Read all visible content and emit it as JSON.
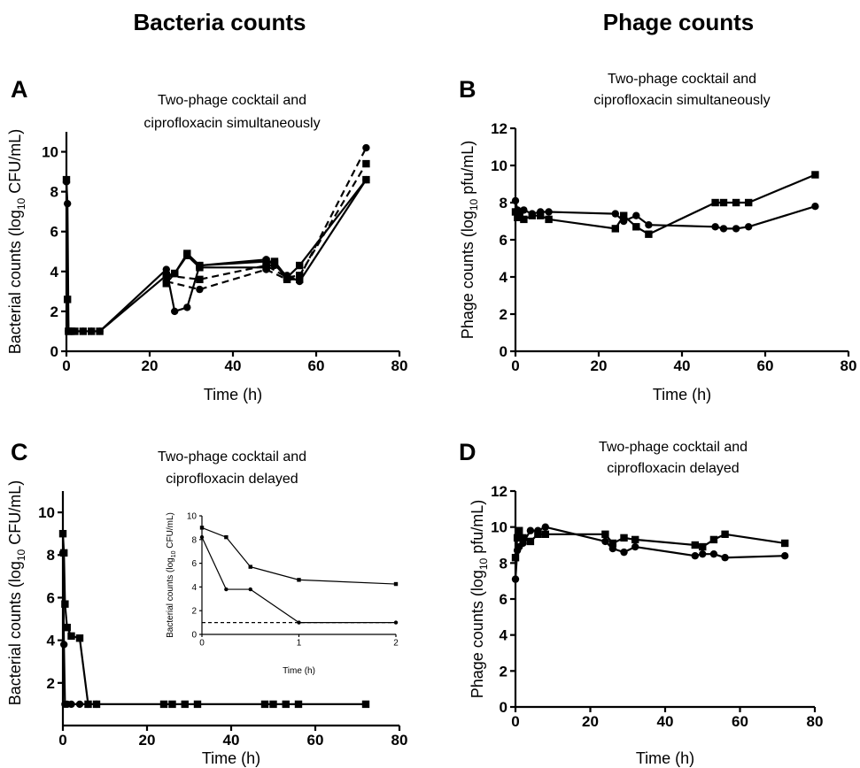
{
  "headings": {
    "left": "Bacteria counts",
    "right": "Phage counts"
  },
  "chart_data": [
    {
      "panel": "A",
      "type": "line",
      "title": [
        "Two-phage cocktail and",
        "ciprofloxacin simultaneously"
      ],
      "xlabel": "Time (h)",
      "ylabel": {
        "pre": "Bacterial counts (log",
        "sub": "10",
        "post": " CFU/mL)"
      },
      "xlim": [
        0,
        80
      ],
      "ylim": [
        0,
        11
      ],
      "xticks": [
        0,
        20,
        40,
        60,
        80
      ],
      "yticks": [
        0,
        2,
        4,
        6,
        8,
        10
      ],
      "series": [
        {
          "marker": "square",
          "dash": false,
          "points": [
            [
              0,
              8.6
            ],
            [
              0.25,
              2.6
            ],
            [
              0.5,
              1
            ],
            [
              1,
              1
            ],
            [
              2,
              1
            ],
            [
              4,
              1
            ],
            [
              6,
              1
            ],
            [
              8,
              1
            ],
            [
              24,
              3.8
            ],
            [
              26,
              3.9
            ],
            [
              29,
              4.9
            ],
            [
              32,
              4.3
            ],
            [
              48,
              4.5
            ],
            [
              50,
              4.5
            ],
            [
              53,
              3.7
            ],
            [
              56,
              4.3
            ],
            [
              72,
              8.6
            ]
          ]
        },
        {
          "marker": "circle",
          "dash": false,
          "points": [
            [
              0,
              8.5
            ],
            [
              0.25,
              7.4
            ],
            [
              0.5,
              1
            ],
            [
              1,
              1
            ],
            [
              2,
              1
            ],
            [
              4,
              1
            ],
            [
              6,
              1
            ],
            [
              8,
              1
            ],
            [
              24,
              4.1
            ],
            [
              26,
              2.0
            ],
            [
              29,
              2.2
            ],
            [
              32,
              4.3
            ],
            [
              48,
              4.6
            ],
            [
              50,
              4.3
            ],
            [
              53,
              3.8
            ],
            [
              56,
              3.5
            ],
            [
              72,
              8.6
            ]
          ]
        },
        {
          "marker": "square",
          "dash": false,
          "points": [
            [
              24,
              3.4
            ],
            [
              26,
              3.9
            ],
            [
              29,
              4.8
            ],
            [
              32,
              4.2
            ],
            [
              48,
              4.2
            ],
            [
              50,
              4.4
            ],
            [
              53,
              3.6
            ],
            [
              56,
              3.6
            ]
          ]
        },
        {
          "marker": "square",
          "dash": true,
          "points": [
            [
              24,
              3.8
            ],
            [
              32,
              3.6
            ],
            [
              48,
              4.3
            ],
            [
              53,
              3.7
            ],
            [
              56,
              3.8
            ],
            [
              72,
              9.4
            ]
          ]
        },
        {
          "marker": "circle",
          "dash": true,
          "points": [
            [
              24,
              3.5
            ],
            [
              32,
              3.1
            ],
            [
              48,
              4.1
            ],
            [
              53,
              3.6
            ],
            [
              56,
              3.7
            ],
            [
              72,
              10.2
            ]
          ]
        }
      ]
    },
    {
      "panel": "B",
      "type": "line",
      "title": [
        "Two-phage cocktail and",
        "ciprofloxacin simultaneously"
      ],
      "xlabel": "Time (h)",
      "ylabel": {
        "pre": "Phage counts (log",
        "sub": "10",
        "post": " pfu/mL)"
      },
      "xlim": [
        0,
        80
      ],
      "ylim": [
        0,
        12
      ],
      "xticks": [
        0,
        20,
        40,
        60,
        80
      ],
      "yticks": [
        0,
        2,
        4,
        6,
        8,
        10,
        12
      ],
      "series": [
        {
          "marker": "circle",
          "dash": false,
          "points": [
            [
              0,
              8.1
            ],
            [
              0.5,
              7.6
            ],
            [
              1,
              7.5
            ],
            [
              2,
              7.6
            ],
            [
              4,
              7.4
            ],
            [
              6,
              7.5
            ],
            [
              8,
              7.5
            ],
            [
              24,
              7.4
            ],
            [
              26,
              7.0
            ],
            [
              29,
              7.3
            ],
            [
              32,
              6.8
            ],
            [
              48,
              6.7
            ],
            [
              50,
              6.6
            ],
            [
              53,
              6.6
            ],
            [
              56,
              6.7
            ],
            [
              72,
              7.8
            ]
          ]
        },
        {
          "marker": "square",
          "dash": false,
          "points": [
            [
              0,
              7.5
            ],
            [
              0.5,
              7.2
            ],
            [
              1,
              7.3
            ],
            [
              2,
              7.1
            ],
            [
              4,
              7.3
            ],
            [
              6,
              7.3
            ],
            [
              8,
              7.1
            ],
            [
              24,
              6.6
            ],
            [
              26,
              7.3
            ],
            [
              29,
              6.7
            ],
            [
              32,
              6.3
            ],
            [
              48,
              8.0
            ],
            [
              50,
              8.0
            ],
            [
              53,
              8.0
            ],
            [
              56,
              8.0
            ],
            [
              72,
              9.5
            ]
          ]
        }
      ]
    },
    {
      "panel": "C",
      "type": "line",
      "title": [
        "Two-phage cocktail and",
        "ciprofloxacin delayed"
      ],
      "xlabel": "Time (h)",
      "ylabel": {
        "pre": "Bacterial counts (log",
        "sub": "10",
        "post": " CFU/mL)"
      },
      "xlim": [
        0,
        80
      ],
      "ylim": [
        0,
        11
      ],
      "xticks": [
        0,
        20,
        40,
        60,
        80
      ],
      "yticks": [
        2,
        4,
        6,
        8,
        10
      ],
      "series": [
        {
          "marker": "square",
          "dash": false,
          "points": [
            [
              0,
              9.0
            ],
            [
              0.25,
              8.1
            ],
            [
              0.5,
              5.7
            ],
            [
              1,
              4.6
            ],
            [
              2,
              4.2
            ],
            [
              4,
              4.1
            ],
            [
              6,
              1
            ],
            [
              8,
              1
            ],
            [
              24,
              1
            ],
            [
              26,
              1
            ],
            [
              29,
              1
            ],
            [
              32,
              1
            ],
            [
              48,
              1
            ],
            [
              50,
              1
            ],
            [
              53,
              1
            ],
            [
              56,
              1
            ],
            [
              72,
              1
            ]
          ]
        },
        {
          "marker": "circle",
          "dash": false,
          "points": [
            [
              0,
              8.1
            ],
            [
              0.25,
              3.8
            ],
            [
              0.5,
              1
            ],
            [
              1,
              1
            ],
            [
              2,
              1
            ],
            [
              4,
              1
            ],
            [
              6,
              1
            ],
            [
              8,
              1
            ]
          ]
        }
      ],
      "inset": {
        "xlabel": "Time (h)",
        "ylabel": {
          "pre": "Bacterial counts (log",
          "sub": "10",
          "post": " CFU/mL)"
        },
        "xlim": [
          0,
          2
        ],
        "ylim": [
          0,
          10
        ],
        "xticks": [
          0,
          1,
          2
        ],
        "yticks": [
          0,
          2,
          4,
          6,
          8,
          10
        ],
        "series": [
          {
            "marker": "square",
            "dash": false,
            "points": [
              [
                0,
                9.0
              ],
              [
                0.25,
                8.2
              ],
              [
                0.5,
                5.7
              ],
              [
                1,
                4.6
              ],
              [
                2,
                4.25
              ]
            ]
          },
          {
            "marker": "circle",
            "dash": false,
            "points": [
              [
                0,
                8.2
              ],
              [
                0.25,
                3.8
              ],
              [
                0.5,
                3.8
              ],
              [
                1,
                1
              ],
              [
                2,
                1
              ]
            ]
          },
          {
            "marker": "none",
            "dash": true,
            "points": [
              [
                0,
                1
              ],
              [
                2,
                1
              ]
            ]
          }
        ]
      }
    },
    {
      "panel": "D",
      "type": "line",
      "title": [
        "Two-phage cocktail and",
        "ciprofloxacin delayed"
      ],
      "xlabel": "Time (h)",
      "ylabel": {
        "pre": "Phage counts (log",
        "sub": "10",
        "post": " pfu/mL)"
      },
      "xlim": [
        0,
        80
      ],
      "ylim": [
        0,
        12
      ],
      "xticks": [
        0,
        20,
        40,
        60,
        80
      ],
      "yticks": [
        0,
        2,
        4,
        6,
        8,
        10,
        12
      ],
      "series": [
        {
          "marker": "circle",
          "dash": false,
          "points": [
            [
              0,
              7.1
            ],
            [
              0.5,
              8.7
            ],
            [
              1,
              8.9
            ],
            [
              2,
              9.1
            ],
            [
              4,
              9.8
            ],
            [
              6,
              9.8
            ],
            [
              8,
              10.0
            ],
            [
              24,
              9.2
            ],
            [
              26,
              8.8
            ],
            [
              29,
              8.6
            ],
            [
              32,
              8.9
            ],
            [
              48,
              8.4
            ],
            [
              50,
              8.5
            ],
            [
              53,
              8.5
            ],
            [
              56,
              8.3
            ],
            [
              72,
              8.4
            ]
          ]
        },
        {
          "marker": "square",
          "dash": false,
          "points": [
            [
              0,
              8.3
            ],
            [
              0.5,
              9.4
            ],
            [
              1,
              9.8
            ],
            [
              2,
              9.4
            ],
            [
              4,
              9.2
            ],
            [
              6,
              9.6
            ],
            [
              8,
              9.6
            ],
            [
              24,
              9.6
            ],
            [
              26,
              9.1
            ],
            [
              29,
              9.4
            ],
            [
              32,
              9.3
            ],
            [
              48,
              9.0
            ],
            [
              50,
              8.9
            ],
            [
              53,
              9.3
            ],
            [
              56,
              9.6
            ],
            [
              72,
              9.1
            ]
          ]
        }
      ]
    }
  ]
}
